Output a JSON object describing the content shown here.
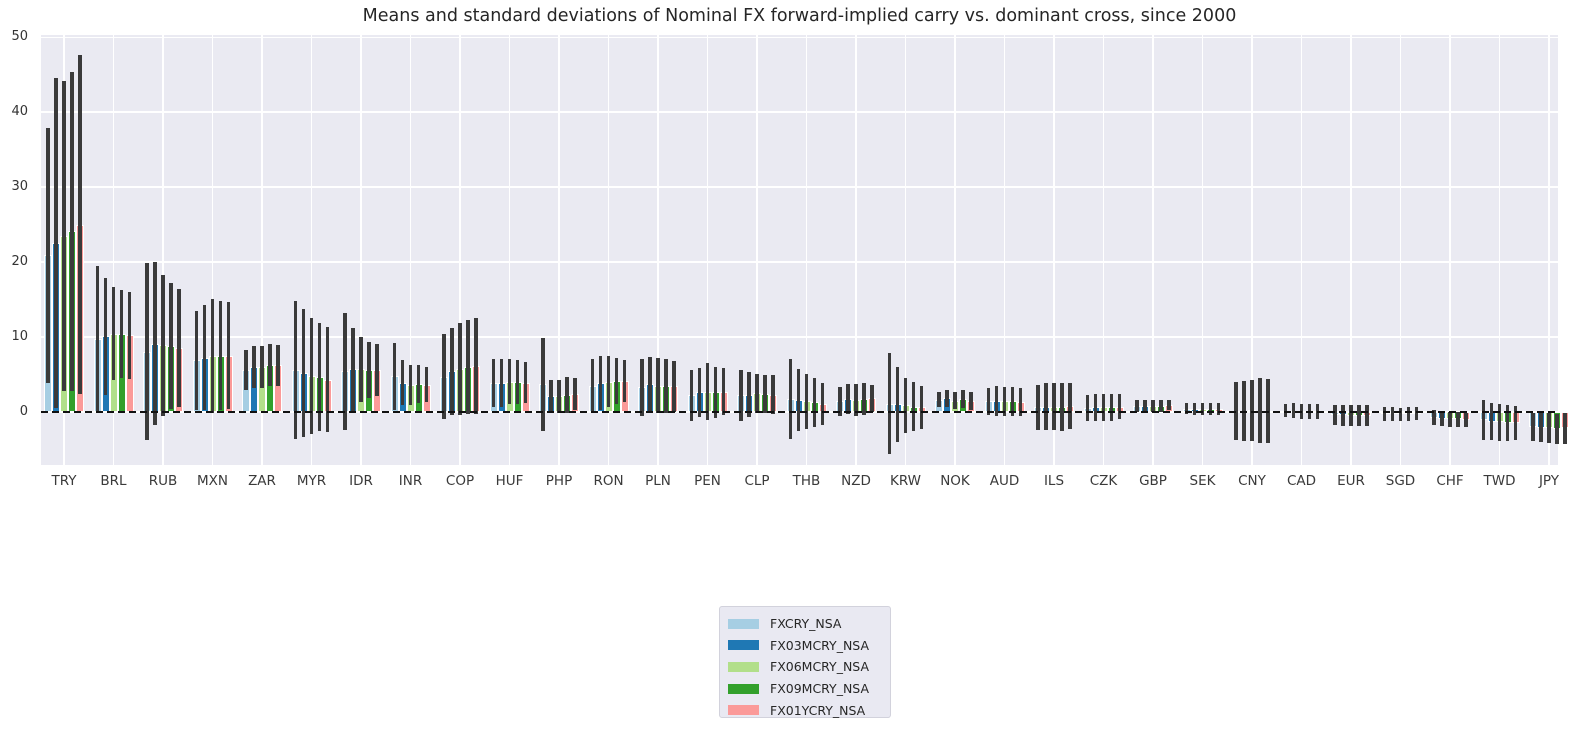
{
  "chart_data": {
    "type": "bar",
    "title": "Means and standard deviations of Nominal FX forward-implied carry vs. dominant cross, since 2000",
    "subtitle": "",
    "xlabel": "",
    "ylabel": "",
    "y_ticks": [
      0,
      10,
      20,
      30,
      40,
      50
    ],
    "ylim": [
      -7.1,
      50.3
    ],
    "grid": true,
    "zero_line": "dashed-black",
    "error_bars": "mean plus/minus standard deviation, no caps",
    "legend_position": "below-plot-center",
    "categories": [
      "TRY",
      "BRL",
      "RUB",
      "MXN",
      "ZAR",
      "MYR",
      "IDR",
      "INR",
      "COP",
      "HUF",
      "PHP",
      "RON",
      "PLN",
      "PEN",
      "CLP",
      "THB",
      "NZD",
      "KRW",
      "NOK",
      "AUD",
      "ILS",
      "CZK",
      "GBP",
      "SEK",
      "CNY",
      "CAD",
      "EUR",
      "SGD",
      "CHF",
      "TWD",
      "JPY"
    ],
    "series": [
      {
        "name": "FXCRY_NSA",
        "color": "#a6cee3",
        "means": [
          20.9,
          9.7,
          8.0,
          6.9,
          5.6,
          5.6,
          5.4,
          4.75,
          4.7,
          3.9,
          3.7,
          3.5,
          3.3,
          2.2,
          2.2,
          1.7,
          1.4,
          1.1,
          1.6,
          1.4,
          0.6,
          0.5,
          0.75,
          0.4,
          0.1,
          0.15,
          -0.4,
          -0.3,
          -0.8,
          -1.1,
          -2.0
        ],
        "stds": [
          17.0,
          9.8,
          11.8,
          6.6,
          2.7,
          9.2,
          7.8,
          4.45,
          5.7,
          3.2,
          6.2,
          3.5,
          3.8,
          3.4,
          3.4,
          5.35,
          1.9,
          6.7,
          1.0,
          1.8,
          3.0,
          1.7,
          0.8,
          0.75,
          3.9,
          0.9,
          1.3,
          0.9,
          1.0,
          2.7,
          1.9
        ]
      },
      {
        "name": "FX03MCRY_NSA",
        "color": "#1f78b4",
        "means": [
          22.5,
          10.1,
          9.1,
          7.2,
          6.0,
          5.2,
          5.65,
          3.85,
          5.4,
          3.9,
          2.1,
          3.9,
          3.7,
          2.6,
          2.3,
          1.6,
          1.7,
          1.0,
          1.8,
          1.45,
          0.7,
          0.6,
          0.8,
          0.4,
          0.1,
          0.15,
          -0.45,
          -0.3,
          -0.9,
          -1.3,
          -2.1
        ],
        "stds": [
          22.0,
          7.8,
          10.9,
          7.0,
          2.8,
          8.5,
          5.6,
          3.0,
          5.8,
          3.2,
          2.1,
          3.6,
          3.6,
          3.3,
          3.0,
          4.1,
          2.0,
          5.0,
          1.1,
          1.95,
          3.1,
          1.8,
          0.8,
          0.8,
          4.0,
          1.0,
          1.4,
          0.9,
          1.0,
          2.5,
          1.9
        ]
      },
      {
        "name": "FX06MCRY_NSA",
        "color": "#b2df8a",
        "means": [
          23.5,
          10.4,
          8.9,
          7.4,
          6.0,
          4.8,
          5.65,
          3.6,
          5.7,
          4.0,
          2.1,
          4.0,
          3.5,
          2.7,
          2.45,
          1.4,
          1.55,
          0.85,
          1.5,
          1.4,
          0.7,
          0.6,
          0.8,
          0.4,
          0.2,
          0.1,
          -0.5,
          -0.35,
          -1.0,
          -1.4,
          -2.2
        ],
        "stds": [
          20.7,
          6.2,
          9.4,
          7.6,
          2.8,
          7.7,
          4.4,
          2.7,
          6.1,
          3.0,
          2.2,
          3.4,
          3.7,
          3.8,
          2.65,
          3.7,
          2.1,
          3.7,
          1.1,
          1.9,
          3.1,
          1.8,
          0.8,
          0.8,
          4.1,
          1.0,
          1.4,
          0.9,
          1.0,
          2.5,
          2.0
        ]
      },
      {
        "name": "FX09MCRY_NSA",
        "color": "#33a02c",
        "means": [
          24.1,
          10.4,
          8.8,
          7.5,
          6.2,
          4.6,
          5.6,
          3.7,
          6.0,
          4.0,
          2.2,
          4.1,
          3.5,
          2.6,
          2.4,
          1.25,
          1.7,
          0.7,
          1.7,
          1.4,
          0.7,
          0.6,
          0.8,
          0.4,
          0.15,
          0.1,
          -0.5,
          -0.3,
          -1.0,
          -1.5,
          -2.3
        ],
        "stds": [
          21.3,
          5.9,
          8.4,
          7.3,
          2.8,
          7.2,
          3.7,
          2.5,
          6.3,
          2.9,
          2.4,
          3.1,
          3.6,
          3.4,
          2.55,
          3.3,
          2.1,
          3.3,
          1.2,
          1.9,
          3.2,
          1.8,
          0.8,
          0.8,
          4.3,
          1.0,
          1.4,
          0.9,
          1.0,
          2.4,
          2.0
        ]
      },
      {
        "name": "FX01YCRY_NSA",
        "color": "#fb9a99",
        "means": [
          25.0,
          10.2,
          8.5,
          7.5,
          6.2,
          4.3,
          5.6,
          3.6,
          6.1,
          3.9,
          2.35,
          4.1,
          3.4,
          2.7,
          2.3,
          1.1,
          1.8,
          0.6,
          1.4,
          1.3,
          0.75,
          0.7,
          0.9,
          0.4,
          0.1,
          0.1,
          -0.5,
          -0.25,
          -1.1,
          -1.5,
          -2.2
        ],
        "stds": [
          22.6,
          5.8,
          7.9,
          7.1,
          2.7,
          7.0,
          3.5,
          2.35,
          6.4,
          2.7,
          2.15,
          2.8,
          3.4,
          3.15,
          2.6,
          2.8,
          1.8,
          2.9,
          1.2,
          1.9,
          3.1,
          1.7,
          0.7,
          0.8,
          4.3,
          1.0,
          1.4,
          0.9,
          0.9,
          2.3,
          2.1
        ]
      }
    ]
  },
  "colors": {
    "figure_bg": "#ffffff",
    "plot_bg": "#eaeaf2",
    "gridline": "#ffffff",
    "error_bar": "#3a3a3a",
    "zero_line": "#111111",
    "title_text": "#262626",
    "tick_text": "#333333",
    "legend_bg": "#e9e9f2",
    "legend_border": "#d2d2dc"
  }
}
